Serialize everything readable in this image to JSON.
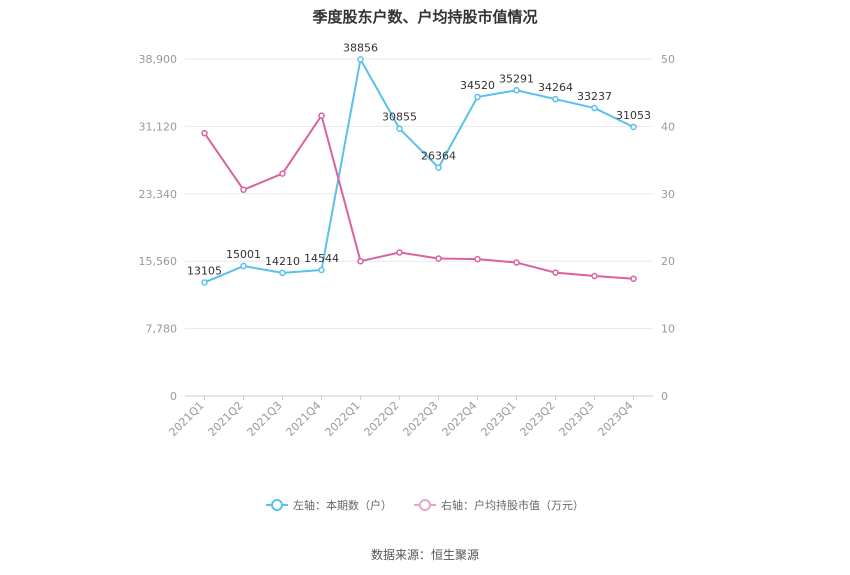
{
  "chart_data": {
    "type": "line",
    "title": "季度股东户数、户均持股市值情况",
    "categories": [
      "2021Q1",
      "2021Q2",
      "2021Q3",
      "2021Q4",
      "2022Q1",
      "2022Q2",
      "2022Q3",
      "2022Q4",
      "2023Q1",
      "2023Q2",
      "2023Q3",
      "2023Q4"
    ],
    "y_left": {
      "ticks": [
        "0",
        "7,780",
        "15,560",
        "23,340",
        "31,120",
        "38,900"
      ],
      "ylim": [
        0,
        38900
      ]
    },
    "y_right": {
      "ticks": [
        "0",
        "10",
        "20",
        "30",
        "40",
        "50"
      ],
      "ylim": [
        0,
        50
      ]
    },
    "series": [
      {
        "name": "左轴：本期数（户）",
        "axis": "left",
        "color": "#5bc0eb",
        "values": [
          13105,
          15001,
          14210,
          14544,
          38856,
          30855,
          26364,
          34520,
          35291,
          34264,
          33237,
          31053
        ],
        "labels": [
          "13105",
          "15001",
          "14210",
          "14544",
          "38856",
          "30855",
          "26364",
          "34520",
          "35291",
          "34264",
          "33237",
          "31053"
        ]
      },
      {
        "name": "右轴：户均持股市值（万元）",
        "axis": "right",
        "color": "#d9629f",
        "values": [
          39.0,
          30.6,
          33.0,
          41.6,
          20.0,
          21.3,
          20.4,
          20.3,
          19.8,
          18.3,
          17.8,
          17.4
        ]
      }
    ],
    "grid": true,
    "legend_position": "bottom"
  },
  "legend": {
    "left_label": "左轴：本期数（户）",
    "right_label": "右轴：户均持股市值（万元）",
    "left_color": "#5bc0eb",
    "right_color": "#e7a6c6"
  },
  "source": "数据来源：恒生聚源"
}
